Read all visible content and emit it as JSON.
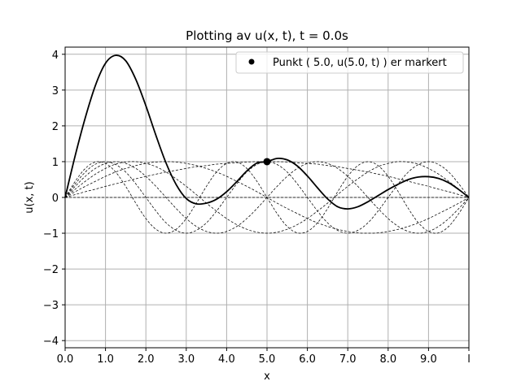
{
  "chart_data": {
    "type": "line",
    "title": "Plotting av u(x, t), t = 0.0s",
    "xlabel": "x",
    "ylabel": "u(x, t)",
    "xlim": [
      0,
      10
    ],
    "ylim": [
      -4.2,
      4.2
    ],
    "grid": true,
    "legend_position": "top-right",
    "x_ticks": [
      {
        "value": 0,
        "label": "0.0"
      },
      {
        "value": 1,
        "label": "1.0"
      },
      {
        "value": 2,
        "label": "2.0"
      },
      {
        "value": 3,
        "label": "3.0"
      },
      {
        "value": 4,
        "label": "4.0"
      },
      {
        "value": 5,
        "label": "5.0"
      },
      {
        "value": 6,
        "label": "6.0"
      },
      {
        "value": 7,
        "label": "7.0"
      },
      {
        "value": 8,
        "label": "8.0"
      },
      {
        "value": 9,
        "label": "9.0"
      },
      {
        "value": 10,
        "label": "l"
      }
    ],
    "y_ticks": [
      {
        "value": 4,
        "label": "4"
      },
      {
        "value": 3,
        "label": "3"
      },
      {
        "value": 2,
        "label": "2"
      },
      {
        "value": 1,
        "label": "1"
      },
      {
        "value": 0,
        "label": "0"
      },
      {
        "value": -1,
        "label": "−1"
      },
      {
        "value": -2,
        "label": "−2"
      },
      {
        "value": -3,
        "label": "−3"
      },
      {
        "value": -4,
        "label": "−4"
      }
    ],
    "x": [
      0,
      0.25,
      0.5,
      0.75,
      1,
      1.25,
      1.5,
      1.75,
      2,
      2.25,
      2.5,
      2.75,
      3,
      3.25,
      3.5,
      3.75,
      4,
      4.25,
      4.5,
      4.75,
      5,
      5.25,
      5.5,
      5.75,
      6,
      6.25,
      6.5,
      6.75,
      7,
      7.25,
      7.5,
      7.75,
      8,
      8.25,
      8.5,
      8.75,
      9,
      9.25,
      9.5,
      9.75,
      10
    ],
    "series": [
      {
        "style": "solid",
        "values": [
          0,
          1.17,
          2.23,
          3.13,
          3.75,
          3.97,
          3.82,
          3.3,
          2.56,
          1.73,
          0.96,
          0.36,
          -0.03,
          -0.18,
          -0.16,
          -0.05,
          0.16,
          0.44,
          0.74,
          0.96,
          1,
          1.09,
          1.05,
          0.88,
          0.6,
          0.27,
          -0.04,
          -0.26,
          -0.32,
          -0.26,
          -0.12,
          0.05,
          0.22,
          0.37,
          0.5,
          0.57,
          0.58,
          0.53,
          0.41,
          0.22,
          0
        ]
      },
      {
        "style": "dashed",
        "values": [
          0,
          0.08,
          0.16,
          0.23,
          0.31,
          0.38,
          0.45,
          0.52,
          0.59,
          0.65,
          0.71,
          0.76,
          0.81,
          0.86,
          0.89,
          0.93,
          0.95,
          0.97,
          0.99,
          1,
          1,
          1,
          0.99,
          0.97,
          0.95,
          0.93,
          0.89,
          0.86,
          0.81,
          0.76,
          0.71,
          0.65,
          0.59,
          0.52,
          0.45,
          0.38,
          0.31,
          0.23,
          0.16,
          0.08,
          0
        ]
      },
      {
        "style": "dashed",
        "values": [
          0,
          0.16,
          0.31,
          0.45,
          0.59,
          0.71,
          0.81,
          0.89,
          0.95,
          0.99,
          1,
          0.99,
          0.95,
          0.89,
          0.81,
          0.71,
          0.59,
          0.45,
          0.31,
          0.16,
          0,
          -0.16,
          -0.31,
          -0.45,
          -0.59,
          -0.71,
          -0.81,
          -0.89,
          -0.95,
          -0.99,
          -1,
          -0.99,
          -0.95,
          -0.89,
          -0.81,
          -0.71,
          -0.59,
          -0.45,
          -0.31,
          -0.16,
          0
        ]
      },
      {
        "style": "dashed",
        "values": [
          0,
          0.23,
          0.45,
          0.65,
          0.81,
          0.93,
          0.99,
          1,
          0.95,
          0.86,
          0.71,
          0.52,
          0.31,
          0.08,
          -0.16,
          -0.38,
          -0.59,
          -0.76,
          -0.89,
          -0.97,
          -1,
          -0.97,
          -0.89,
          -0.76,
          -0.59,
          -0.38,
          -0.16,
          0.08,
          0.31,
          0.52,
          0.71,
          0.86,
          0.95,
          1,
          0.99,
          0.93,
          0.81,
          0.65,
          0.45,
          0.23,
          0
        ]
      },
      {
        "style": "dashed",
        "values": [
          0,
          0.31,
          0.59,
          0.81,
          0.95,
          1,
          0.95,
          0.81,
          0.59,
          0.31,
          0,
          -0.31,
          -0.59,
          -0.81,
          -0.95,
          -1,
          -0.95,
          -0.81,
          -0.59,
          -0.31,
          0,
          0.31,
          0.59,
          0.81,
          0.95,
          1,
          0.95,
          0.81,
          0.59,
          0.31,
          0,
          -0.31,
          -0.59,
          -0.81,
          -0.95,
          -1,
          -0.95,
          -0.81,
          -0.59,
          -0.31,
          0
        ]
      },
      {
        "style": "dashed",
        "values": [
          0,
          0.38,
          0.71,
          0.93,
          1,
          0.92,
          0.71,
          0.38,
          0,
          -0.38,
          -0.71,
          -0.92,
          -1,
          -0.92,
          -0.71,
          -0.38,
          0,
          0.38,
          0.71,
          0.92,
          1,
          0.92,
          0.71,
          0.38,
          0,
          -0.38,
          -0.71,
          -0.92,
          -1,
          -0.92,
          -0.71,
          -0.38,
          0,
          0.38,
          0.71,
          0.92,
          1,
          0.92,
          0.71,
          0.38,
          0
        ]
      },
      {
        "style": "dashed",
        "values": [
          0,
          0.45,
          0.81,
          0.99,
          0.95,
          0.71,
          0.31,
          -0.16,
          -0.59,
          -0.89,
          -1,
          -0.89,
          -0.59,
          -0.16,
          0.31,
          0.71,
          0.95,
          0.99,
          0.81,
          0.45,
          0,
          -0.45,
          -0.81,
          -0.99,
          -0.95,
          -0.71,
          -0.31,
          0.16,
          0.59,
          0.89,
          1,
          0.89,
          0.59,
          0.16,
          -0.31,
          -0.71,
          -0.95,
          -0.99,
          -0.81,
          -0.45,
          0
        ]
      },
      {
        "style": "dashed",
        "values": [
          0,
          0,
          0,
          0,
          0,
          0,
          0,
          0,
          0,
          0,
          0,
          0,
          0,
          0,
          0,
          0,
          0,
          0,
          0,
          0,
          0,
          0,
          0,
          0,
          0,
          0,
          0,
          0,
          0,
          0,
          0,
          0,
          0,
          0,
          0,
          0,
          0,
          0,
          0,
          0,
          0
        ]
      }
    ],
    "marker": {
      "x": 5,
      "y": 1,
      "label": "Punkt ( 5.0, u(5.0, t) ) er markert"
    },
    "colors": {
      "curve": "#000000",
      "grid": "#b0b0b0",
      "background": "#ffffff"
    }
  }
}
